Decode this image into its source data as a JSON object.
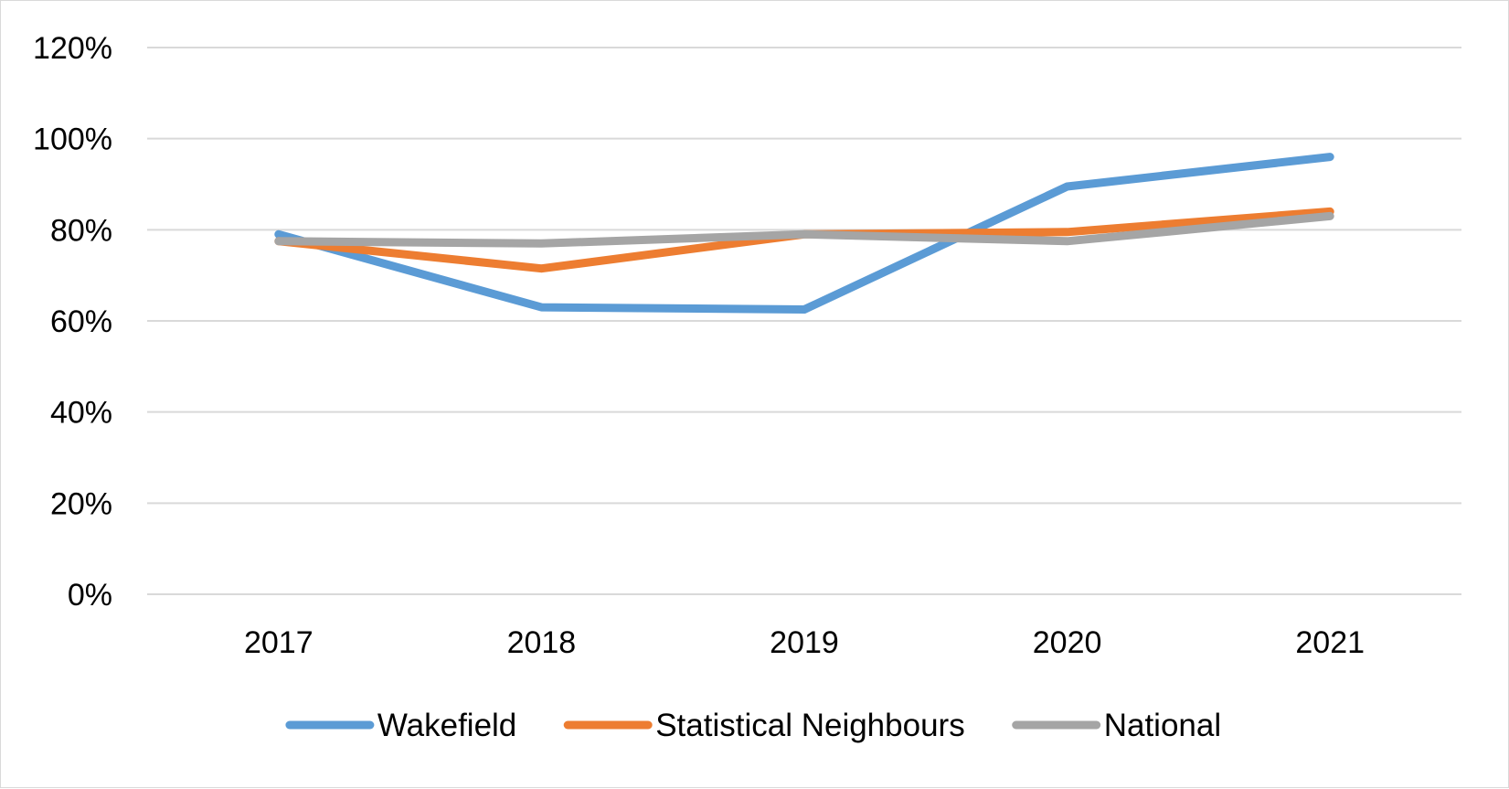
{
  "chart_data": {
    "type": "line",
    "categories": [
      "2017",
      "2018",
      "2019",
      "2020",
      "2021"
    ],
    "ylim": [
      0,
      1.2
    ],
    "yticks": [
      0,
      0.2,
      0.4,
      0.6,
      0.8,
      1.0,
      1.2
    ],
    "ytick_labels": [
      "0%",
      "20%",
      "40%",
      "60%",
      "80%",
      "100%",
      "120%"
    ],
    "grid": true,
    "legend_position": "bottom",
    "series": [
      {
        "name": "Wakefield",
        "color": "#5b9bd5",
        "values": [
          0.79,
          0.63,
          0.625,
          0.895,
          0.96
        ]
      },
      {
        "name": "Statistical Neighbours",
        "color": "#ed7d31",
        "values": [
          0.775,
          0.715,
          0.79,
          0.795,
          0.84
        ]
      },
      {
        "name": "National",
        "color": "#a5a5a5",
        "values": [
          0.775,
          0.77,
          0.79,
          0.775,
          0.83
        ]
      }
    ]
  }
}
